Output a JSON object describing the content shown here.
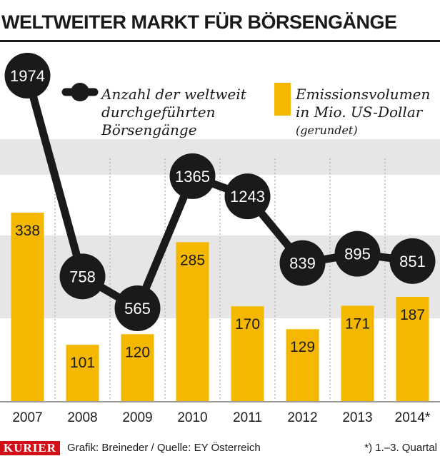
{
  "header": {
    "title": "WELTWEITER MARKT FÜR BÖRSENGÄNGE"
  },
  "colors": {
    "bar": "#f5b800",
    "line": "#1a1a1a",
    "band": "#e6e6e6",
    "brand": "#d1101a"
  },
  "chart_data": {
    "type": "bar",
    "categories": [
      "2007",
      "2008",
      "2009",
      "2010",
      "2011",
      "2012",
      "2013",
      "2014*"
    ],
    "series": [
      {
        "name": "Emissionsvolumen in Mio. US-Dollar (gerundet)",
        "type": "bar",
        "values": [
          338,
          101,
          120,
          285,
          170,
          129,
          171,
          187
        ]
      },
      {
        "name": "Anzahl der weltweit durchgeführten Börsengänge",
        "type": "line",
        "values": [
          1974,
          758,
          565,
          1365,
          1243,
          839,
          895,
          851
        ]
      }
    ],
    "legend": {
      "line_lines": [
        "Anzahl der weltweit",
        "durchgeführten",
        "Börsengänge"
      ],
      "bar_lines": [
        "Emissionsvolumen",
        "in Mio. US-Dollar"
      ],
      "bar_note": "(gerundet)"
    },
    "legend_position": "top",
    "grid": false
  },
  "footer": {
    "brand": "KURIER",
    "credit": "Grafik: Breineder / Quelle: EY Österreich",
    "footnote": "*) 1.–3. Quartal"
  }
}
